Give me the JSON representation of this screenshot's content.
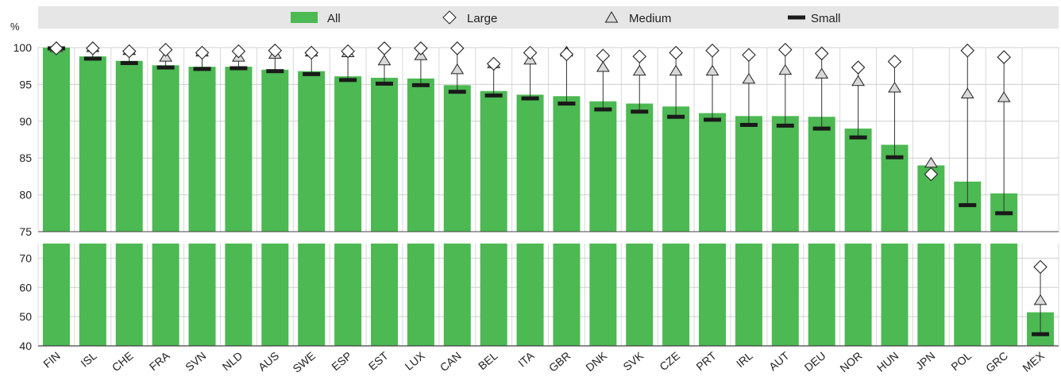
{
  "chart_data": {
    "type": "bar",
    "ylabel": "%",
    "categories": [
      "FIN",
      "ISL",
      "CHE",
      "FRA",
      "SVN",
      "NLD",
      "AUS",
      "SWE",
      "ESP",
      "EST",
      "LUX",
      "CAN",
      "BEL",
      "ITA",
      "GBR",
      "DNK",
      "SVK",
      "CZE",
      "PRT",
      "IRL",
      "AUT",
      "DEU",
      "NOR",
      "HUN",
      "JPN",
      "POL",
      "GRC",
      "MEX"
    ],
    "axis_break": {
      "upper_panel_ylim": [
        75,
        100
      ],
      "lower_panel_ylim": [
        40,
        75
      ]
    },
    "yticks_upper": [
      75,
      80,
      85,
      90,
      95,
      100
    ],
    "yticks_lower": [
      40,
      50,
      60,
      70
    ],
    "legend": {
      "position": "top",
      "all": "All",
      "large": "Large",
      "medium": "Medium",
      "small": "Small"
    },
    "series": [
      {
        "name": "All",
        "marker": "bar",
        "values": [
          100,
          98.8,
          98.2,
          97.6,
          97.4,
          97.4,
          97,
          96.8,
          96.1,
          95.9,
          95.8,
          94.9,
          94.1,
          93.6,
          93.4,
          92.7,
          92.4,
          92,
          91.1,
          90.7,
          90.7,
          90.6,
          89,
          86.8,
          84,
          81.8,
          80.2,
          51.5
        ]
      },
      {
        "name": "Large",
        "marker": "diamond",
        "values": [
          99.9,
          99.9,
          99.5,
          99.7,
          99.3,
          99.5,
          99.6,
          99.3,
          99.5,
          99.9,
          99.9,
          99.9,
          97.8,
          99.3,
          99.1,
          98.9,
          98.8,
          99.3,
          99.6,
          99,
          99.7,
          99.2,
          97.3,
          98.1,
          82.8,
          99.6,
          98.7,
          67
        ]
      },
      {
        "name": "Medium",
        "marker": "triangle",
        "values": [
          100,
          100,
          99.6,
          98.7,
          99.4,
          98.7,
          99.1,
          99.4,
          99.3,
          98.2,
          98.9,
          97,
          97.8,
          98.3,
          99.4,
          97.3,
          96.8,
          96.8,
          96.8,
          95.7,
          96.9,
          96.4,
          95.4,
          94.5,
          84.3,
          93.7,
          93.2,
          55.5
        ]
      },
      {
        "name": "Small",
        "marker": "dash",
        "values": [
          99.9,
          98.5,
          97.9,
          97.3,
          97.1,
          97.2,
          96.8,
          96.4,
          95.6,
          95.1,
          94.9,
          94,
          93.5,
          93.1,
          92.4,
          91.6,
          91.3,
          90.6,
          90.2,
          89.5,
          89.4,
          89,
          87.8,
          85.1,
          null,
          78.6,
          77.5,
          44
        ]
      }
    ],
    "colors": {
      "bar": "#4cb952",
      "small": "#1a1a1a",
      "band": "#e6e6e6",
      "marker_stroke": "#222222"
    }
  }
}
